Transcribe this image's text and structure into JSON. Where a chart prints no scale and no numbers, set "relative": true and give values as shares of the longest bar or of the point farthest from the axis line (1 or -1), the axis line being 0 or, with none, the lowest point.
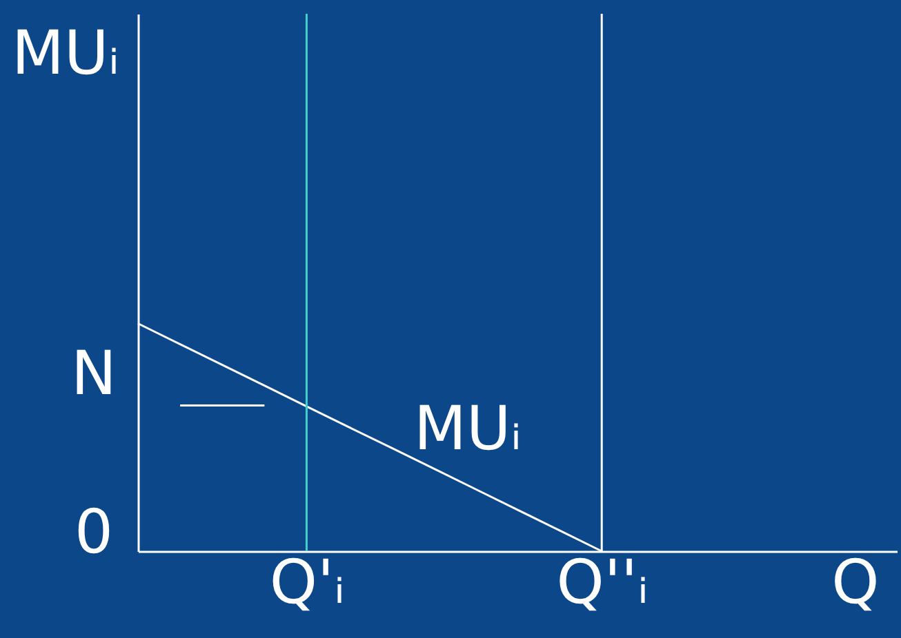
{
  "chart_data": {
    "type": "line",
    "relative": true,
    "ylabel": "MUᵢ",
    "categories": [
      null,
      null,
      null,
      null,
      "Q'ᵢ",
      null,
      null,
      null,
      null,
      null,
      null,
      "Q''ᵢ",
      null,
      null,
      null,
      null,
      null,
      "Q",
      null
    ],
    "series": [
      {
        "color": "#ffffff",
        "values": [
          1,
          0.909,
          0.818,
          0.727,
          0.636,
          0.545,
          0.455,
          0.364,
          0.273,
          0.182,
          0.091,
          0,
          null,
          null,
          null,
          null,
          null,
          null,
          null
        ]
      },
      {
        "color": "#ffffff",
        "values": [
          null,
          0.64,
          0.64,
          0.64,
          null,
          null,
          null,
          null,
          null,
          null,
          null,
          null,
          null,
          null,
          null,
          null,
          null,
          null,
          null
        ]
      }
    ],
    "ref_lines": [
      {
        "axis": "x",
        "value": "Q'ᵢ",
        "label": null,
        "color": "#40d0d0"
      },
      {
        "axis": "x",
        "value": "Q''ᵢ",
        "label": null,
        "color": "#ffffff"
      }
    ],
    "annotations": [
      "MUᵢ",
      "N",
      "0"
    ],
    "grid": false,
    "marker": "none",
    "line_style": "solid"
  }
}
